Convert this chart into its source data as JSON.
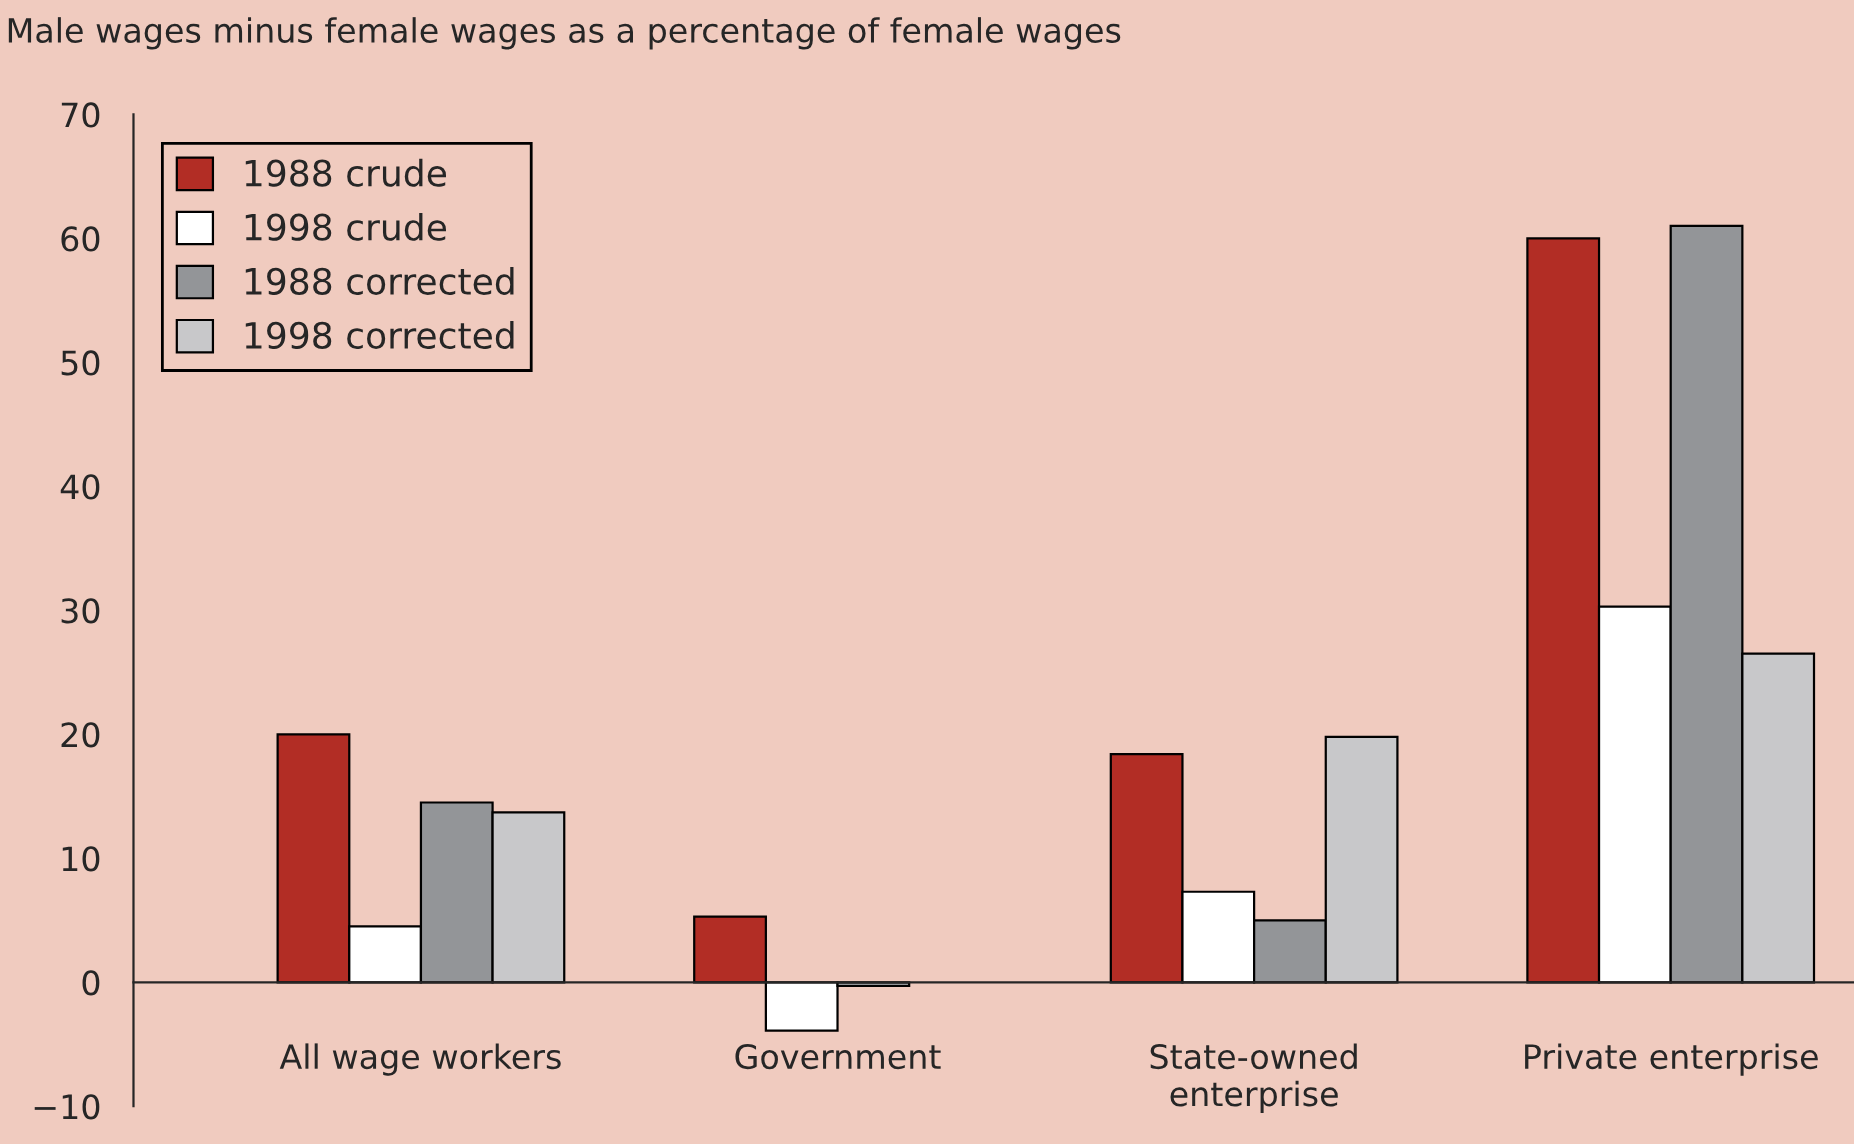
{
  "chart_data": {
    "type": "bar",
    "title": "Male wages minus female wages as a percentage of female wages",
    "categories": [
      "All wage workers",
      "Government",
      "State-owned\nenterprise",
      "Private enterprise"
    ],
    "series": [
      {
        "name": "1988 crude",
        "color": "#b22d25",
        "values": [
          20.0,
          5.3,
          18.4,
          60.0
        ]
      },
      {
        "name": "1998 crude",
        "color": "#ffffff",
        "values": [
          4.5,
          -3.9,
          7.3,
          30.3
        ]
      },
      {
        "name": "1988 corrected",
        "color": "#939598",
        "values": [
          14.5,
          -0.3,
          5.0,
          61.0
        ]
      },
      {
        "name": "1998 corrected",
        "color": "#c8c8ca",
        "values": [
          13.7,
          null,
          19.8,
          26.5
        ]
      }
    ],
    "ylim": [
      -10,
      70
    ],
    "yticks": [
      {
        "value": -10,
        "label": "−10"
      },
      0,
      10,
      20,
      30,
      40,
      50,
      60,
      70
    ],
    "grid": false,
    "legend": "top left"
  }
}
